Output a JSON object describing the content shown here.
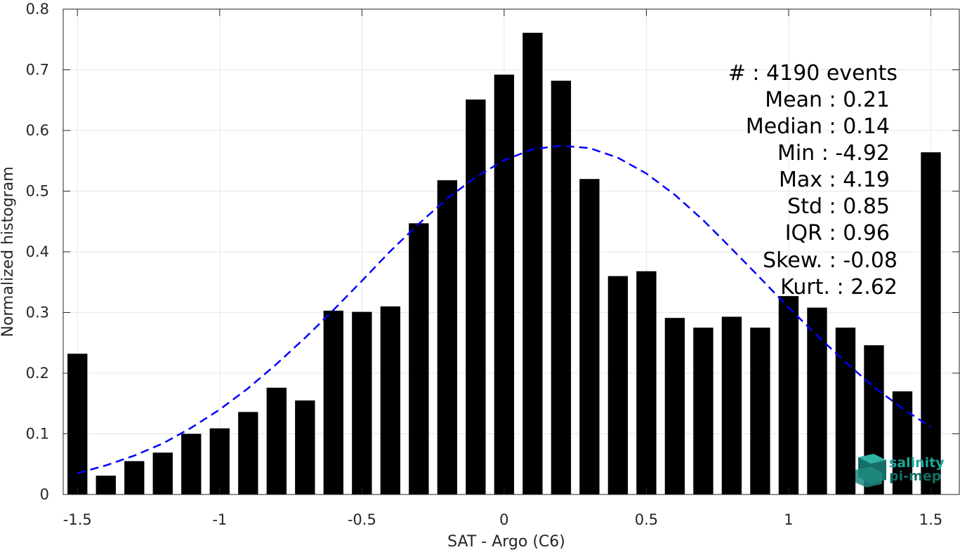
{
  "chart_data": {
    "type": "bar",
    "xlabel": "SAT - Argo (C6)",
    "ylabel": "Normalized histogram",
    "xlim": [
      -1.55,
      1.6
    ],
    "ylim": [
      0,
      0.8
    ],
    "xticks": [
      -1.5,
      -1,
      -0.5,
      0,
      0.5,
      1,
      1.5
    ],
    "xtick_labels": [
      "-1.5",
      "-1",
      "-0.5",
      "0",
      "0.5",
      "1",
      "1.5"
    ],
    "yticks": [
      0,
      0.1,
      0.2,
      0.3,
      0.4,
      0.5,
      0.6,
      0.7,
      0.8
    ],
    "ytick_labels": [
      "0",
      "0.1",
      "0.2",
      "0.3",
      "0.4",
      "0.5",
      "0.6",
      "0.7",
      "0.8"
    ],
    "grid": true,
    "bar_width": 0.07,
    "bar_color": "#000000",
    "x": [
      -1.5,
      -1.4,
      -1.3,
      -1.2,
      -1.1,
      -1.0,
      -0.9,
      -0.8,
      -0.7,
      -0.6,
      -0.5,
      -0.4,
      -0.3,
      -0.2,
      -0.1,
      0.0,
      0.1,
      0.2,
      0.3,
      0.4,
      0.5,
      0.6,
      0.7,
      0.8,
      0.9,
      1.0,
      1.1,
      1.2,
      1.3,
      1.4,
      1.5
    ],
    "values": [
      0.232,
      0.031,
      0.055,
      0.069,
      0.1,
      0.109,
      0.136,
      0.176,
      0.155,
      0.303,
      0.301,
      0.31,
      0.447,
      0.518,
      0.651,
      0.692,
      0.761,
      0.682,
      0.52,
      0.36,
      0.368,
      0.291,
      0.275,
      0.293,
      0.275,
      0.327,
      0.308,
      0.275,
      0.246,
      0.17,
      0.564
    ],
    "fit": {
      "type": "gaussian",
      "style": "dashed",
      "color": "#0000ff",
      "x_range": [
        -1.5,
        1.5
      ],
      "points": [
        [
          -1.5,
          0.035
        ],
        [
          -1.4,
          0.048
        ],
        [
          -1.3,
          0.064
        ],
        [
          -1.2,
          0.084
        ],
        [
          -1.1,
          0.11
        ],
        [
          -1.0,
          0.14
        ],
        [
          -0.9,
          0.175
        ],
        [
          -0.8,
          0.215
        ],
        [
          -0.7,
          0.258
        ],
        [
          -0.6,
          0.304
        ],
        [
          -0.5,
          0.352
        ],
        [
          -0.4,
          0.401
        ],
        [
          -0.3,
          0.446
        ],
        [
          -0.2,
          0.488
        ],
        [
          -0.1,
          0.523
        ],
        [
          0.0,
          0.551
        ],
        [
          0.1,
          0.569
        ],
        [
          0.2,
          0.575
        ],
        [
          0.3,
          0.571
        ],
        [
          0.4,
          0.555
        ],
        [
          0.5,
          0.529
        ],
        [
          0.6,
          0.494
        ],
        [
          0.7,
          0.452
        ],
        [
          0.8,
          0.405
        ],
        [
          0.9,
          0.357
        ],
        [
          1.0,
          0.308
        ],
        [
          1.1,
          0.262
        ],
        [
          1.2,
          0.218
        ],
        [
          1.3,
          0.177
        ],
        [
          1.4,
          0.142
        ],
        [
          1.5,
          0.111
        ]
      ]
    },
    "annotations": [
      {
        "label": "#  ",
        "value": ": 4190 events"
      },
      {
        "label": "Mean ",
        "value": ": 0.21"
      },
      {
        "label": "Median ",
        "value": ": 0.14"
      },
      {
        "label": "Min ",
        "value": ": -4.92"
      },
      {
        "label": "Max ",
        "value": ": 4.19"
      },
      {
        "label": "Std ",
        "value": ": 0.85"
      },
      {
        "label": "IQR ",
        "value": ": 0.96"
      },
      {
        "label": "Skew. ",
        "value": ": -0.08"
      },
      {
        "label": "Kurt. ",
        "value": ": 2.62"
      }
    ]
  },
  "logo": {
    "line1": "salinity",
    "line2": "pi-mep",
    "color": "#1aa79a"
  }
}
